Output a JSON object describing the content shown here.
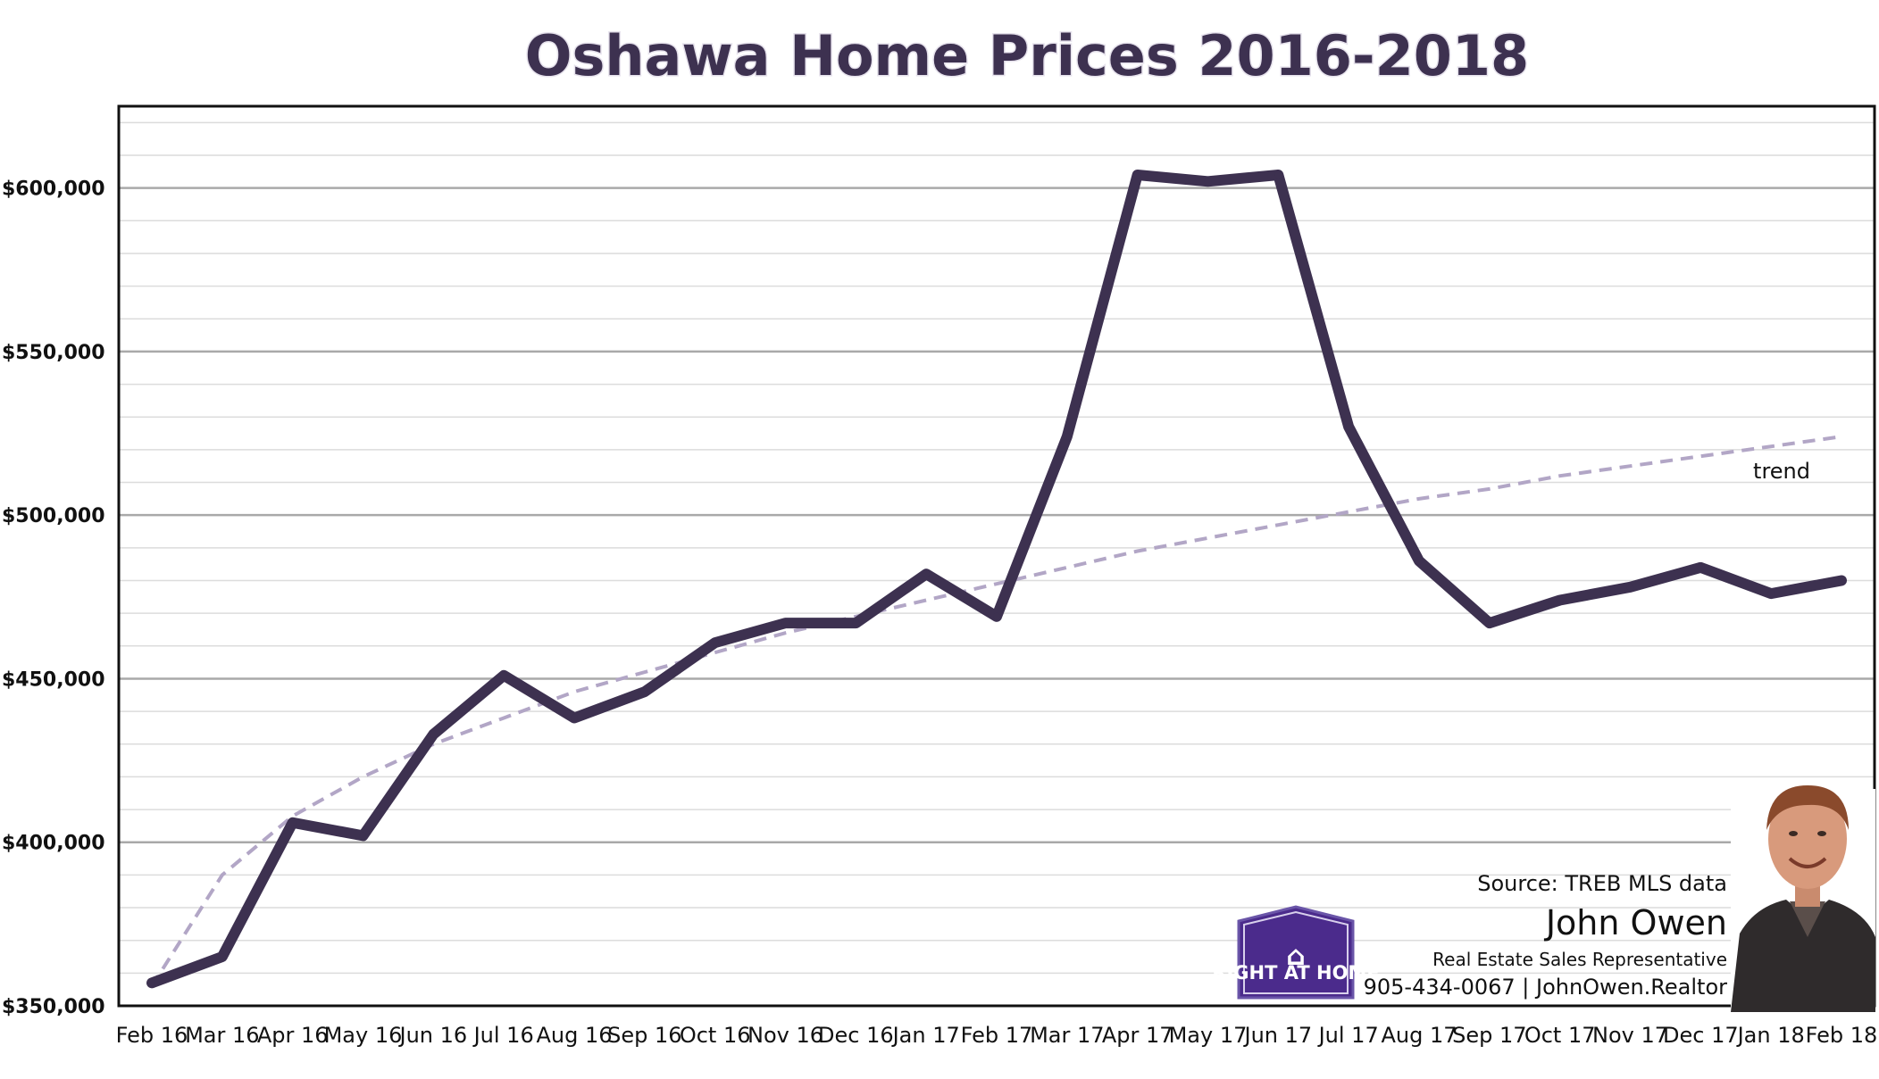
{
  "chart_data": {
    "type": "line",
    "title": "Oshawa Home Prices 2016-2018",
    "categories": [
      "Feb 16",
      "Mar 16",
      "Apr 16",
      "May 16",
      "Jun 16",
      "Jul 16",
      "Aug 16",
      "Sep 16",
      "Oct 16",
      "Nov 16",
      "Dec 16",
      "Jan 17",
      "Feb 17",
      "Mar 17",
      "Apr 17",
      "May 17",
      "Jun 17",
      "Jul 17",
      "Aug 17",
      "Sep 17",
      "Oct 17",
      "Nov 17",
      "Dec 17",
      "Jan 18",
      "Feb 18"
    ],
    "series": [
      {
        "values": [
          357000,
          365000,
          406000,
          402000,
          433000,
          451000,
          438000,
          446000,
          461000,
          467000,
          467000,
          482000,
          469000,
          524000,
          604000,
          602000,
          604000,
          527000,
          486000,
          467000,
          474000,
          478000,
          484000,
          476000,
          480000
        ],
        "color": "#3d3150"
      },
      {
        "name": "trend",
        "style": "dashed",
        "color": "#b2a6c6",
        "values": [
          356000,
          390000,
          408000,
          420000,
          430000,
          438000,
          446000,
          452000,
          458000,
          464000,
          469000,
          474000,
          479000,
          484000,
          489000,
          493000,
          497000,
          501000,
          505000,
          508000,
          512000,
          515000,
          518000,
          521000,
          524000
        ]
      }
    ],
    "yticks": [
      350000,
      400000,
      450000,
      500000,
      550000,
      600000
    ],
    "ytick_labels": [
      "$350,000",
      "$400,000",
      "$450,000",
      "$500,000",
      "$550,000",
      "$600,000"
    ],
    "ylim": [
      350000,
      625000
    ],
    "grid": true,
    "xlabel": "",
    "ylabel": ""
  },
  "annotations": {
    "source": "Source: TREB MLS data",
    "name": "John Owen",
    "role": "Real Estate Sales Representative",
    "contact": "905-434-0067 | JohnOwen.Realtor",
    "logo_text": "RIGHT AT HOME"
  }
}
